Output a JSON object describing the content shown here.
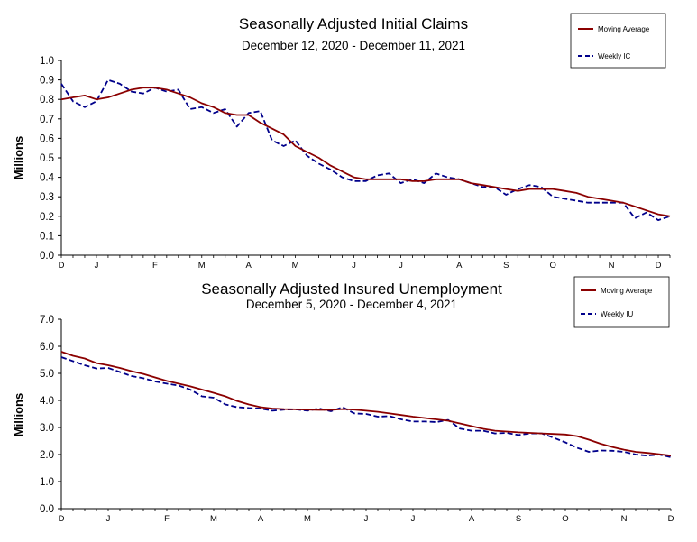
{
  "chart_data": [
    {
      "type": "line",
      "title": "Seasonally Adjusted Initial Claims",
      "subtitle": "December 12, 2020 - December 11, 2021",
      "ylabel": "Millions",
      "xlabel": "",
      "ylim": [
        0,
        1.0
      ],
      "y_ticks": [
        "0.0",
        "0.1",
        "0.2",
        "0.3",
        "0.4",
        "0.5",
        "0.6",
        "0.7",
        "0.8",
        "0.9",
        "1.0"
      ],
      "x_ticks": [
        "D",
        "J",
        "F",
        "M",
        "A",
        "M",
        "J",
        "J",
        "A",
        "S",
        "O",
        "N",
        "D"
      ],
      "x_tick_positions": [
        0,
        3,
        8,
        12,
        16,
        20,
        25,
        29,
        34,
        38,
        42,
        47,
        51
      ],
      "legend": [
        "Moving Average",
        "Weekly IC"
      ],
      "series": [
        {
          "name": "Moving Average",
          "color": "#8b0000",
          "style": "solid",
          "values": [
            0.8,
            0.81,
            0.82,
            0.8,
            0.81,
            0.83,
            0.85,
            0.86,
            0.86,
            0.85,
            0.83,
            0.81,
            0.78,
            0.76,
            0.73,
            0.72,
            0.72,
            0.68,
            0.65,
            0.62,
            0.56,
            0.53,
            0.5,
            0.46,
            0.43,
            0.4,
            0.39,
            0.39,
            0.39,
            0.39,
            0.38,
            0.38,
            0.39,
            0.39,
            0.39,
            0.37,
            0.36,
            0.35,
            0.34,
            0.33,
            0.34,
            0.34,
            0.34,
            0.33,
            0.32,
            0.3,
            0.29,
            0.28,
            0.27,
            0.25,
            0.23,
            0.21,
            0.2
          ]
        },
        {
          "name": "Weekly IC",
          "color": "#00008b",
          "style": "dashed",
          "values": [
            0.88,
            0.79,
            0.76,
            0.79,
            0.9,
            0.88,
            0.84,
            0.83,
            0.86,
            0.84,
            0.85,
            0.75,
            0.76,
            0.73,
            0.75,
            0.66,
            0.73,
            0.74,
            0.59,
            0.56,
            0.59,
            0.51,
            0.47,
            0.44,
            0.4,
            0.38,
            0.38,
            0.41,
            0.42,
            0.37,
            0.39,
            0.37,
            0.42,
            0.4,
            0.39,
            0.37,
            0.35,
            0.35,
            0.31,
            0.34,
            0.36,
            0.35,
            0.3,
            0.29,
            0.28,
            0.27,
            0.27,
            0.27,
            0.27,
            0.19,
            0.22,
            0.18,
            0.2
          ]
        }
      ]
    },
    {
      "type": "line",
      "title": "Seasonally Adjusted Insured Unemployment",
      "subtitle": "December 5, 2020 - December 4, 2021",
      "ylabel": "Millions",
      "xlabel": "",
      "ylim": [
        0,
        7.0
      ],
      "y_ticks": [
        "0.0",
        "1.0",
        "2.0",
        "3.0",
        "4.0",
        "5.0",
        "6.0",
        "7.0"
      ],
      "x_ticks": [
        "D",
        "J",
        "F",
        "M",
        "A",
        "M",
        "J",
        "J",
        "A",
        "S",
        "O",
        "N",
        "D"
      ],
      "x_tick_positions": [
        0,
        4,
        9,
        13,
        17,
        21,
        26,
        30,
        35,
        39,
        43,
        48,
        52
      ],
      "legend": [
        "Moving Average",
        "Weekly IU"
      ],
      "series": [
        {
          "name": "Moving Average",
          "color": "#8b0000",
          "style": "solid",
          "values": [
            5.8,
            5.65,
            5.55,
            5.38,
            5.3,
            5.2,
            5.08,
            4.98,
            4.85,
            4.72,
            4.62,
            4.52,
            4.4,
            4.28,
            4.15,
            3.98,
            3.85,
            3.75,
            3.7,
            3.68,
            3.67,
            3.66,
            3.65,
            3.65,
            3.68,
            3.66,
            3.62,
            3.58,
            3.52,
            3.46,
            3.4,
            3.35,
            3.3,
            3.25,
            3.15,
            3.05,
            2.95,
            2.88,
            2.85,
            2.82,
            2.8,
            2.78,
            2.76,
            2.74,
            2.68,
            2.55,
            2.4,
            2.28,
            2.18,
            2.1,
            2.06,
            2.01,
            1.96
          ]
        },
        {
          "name": "Weekly IU",
          "color": "#00008b",
          "style": "dashed",
          "values": [
            5.6,
            5.45,
            5.3,
            5.18,
            5.2,
            5.05,
            4.9,
            4.82,
            4.7,
            4.62,
            4.55,
            4.4,
            4.15,
            4.1,
            3.85,
            3.75,
            3.72,
            3.7,
            3.62,
            3.66,
            3.67,
            3.62,
            3.7,
            3.6,
            3.75,
            3.52,
            3.5,
            3.4,
            3.42,
            3.3,
            3.22,
            3.22,
            3.2,
            3.28,
            2.96,
            2.88,
            2.88,
            2.78,
            2.8,
            2.72,
            2.78,
            2.78,
            2.62,
            2.45,
            2.25,
            2.1,
            2.15,
            2.14,
            2.1,
            2.0,
            1.96,
            2.0,
            1.9
          ]
        }
      ]
    }
  ]
}
